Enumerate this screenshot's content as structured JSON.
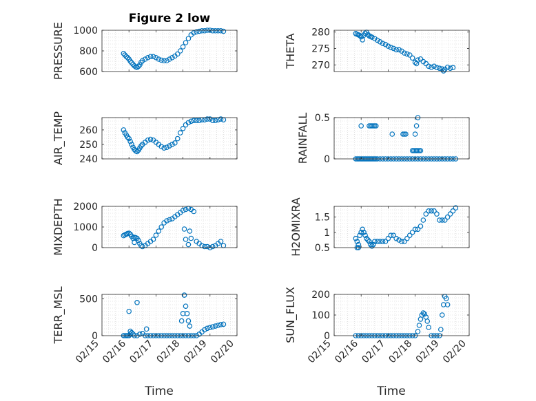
{
  "colors": {
    "marker": "#0072BD",
    "axis": "#262626",
    "grid": "#d0d0d0"
  },
  "x_axis": {
    "label": "Time",
    "range": [
      "02/15",
      "02/20"
    ],
    "ticks": [
      "02/15",
      "02/16",
      "02/17",
      "02/18",
      "02/19",
      "02/20"
    ],
    "tick_rotation_deg": -45
  },
  "chart_data": [
    {
      "type": "scatter",
      "title": "Figure 2 low",
      "ylabel": "PRESSURE",
      "ylim": [
        600,
        1000
      ],
      "yticks": [
        600,
        800,
        1000
      ],
      "grid": "minor-dotted",
      "x": [
        0.8,
        0.85,
        0.9,
        0.95,
        1.0,
        1.05,
        1.1,
        1.15,
        1.2,
        1.25,
        1.3,
        1.35,
        1.4,
        1.45,
        1.5,
        1.6,
        1.7,
        1.8,
        1.9,
        2.0,
        2.1,
        2.2,
        2.3,
        2.4,
        2.5,
        2.6,
        2.7,
        2.8,
        2.9,
        3.0,
        3.1,
        3.2,
        3.3,
        3.4,
        3.5,
        3.6,
        3.7,
        3.8,
        3.9,
        4.0,
        4.1,
        4.2,
        4.3,
        4.4,
        4.5
      ],
      "y": [
        775,
        760,
        745,
        735,
        720,
        700,
        685,
        670,
        655,
        645,
        640,
        650,
        665,
        690,
        705,
        720,
        735,
        745,
        745,
        735,
        720,
        710,
        705,
        705,
        720,
        735,
        750,
        770,
        800,
        840,
        880,
        920,
        955,
        975,
        985,
        990,
        995,
        995,
        1000,
        1000,
        995,
        995,
        995,
        995,
        990
      ]
    },
    {
      "type": "scatter",
      "title": "",
      "ylabel": "THETA",
      "ylim": [
        268,
        280.5
      ],
      "yticks": [
        270,
        275,
        280
      ],
      "grid": "minor-dotted",
      "x": [
        0.8,
        0.85,
        0.9,
        0.95,
        1.0,
        1.05,
        1.1,
        1.15,
        1.2,
        1.25,
        1.3,
        1.35,
        1.4,
        1.5,
        1.6,
        1.7,
        1.8,
        1.9,
        2.0,
        2.1,
        2.2,
        2.3,
        2.4,
        2.5,
        2.6,
        2.7,
        2.8,
        2.9,
        3.0,
        3.05,
        3.1,
        3.2,
        3.3,
        3.4,
        3.5,
        3.6,
        3.7,
        3.8,
        3.9,
        4.0,
        4.05,
        4.1,
        4.2,
        4.3,
        4.4
      ],
      "y": [
        279.5,
        279.3,
        279.1,
        278.9,
        278.5,
        277.6,
        279.0,
        279.6,
        279.9,
        279.2,
        278.8,
        278.6,
        278.4,
        278.0,
        277.5,
        277.0,
        276.5,
        276.2,
        275.7,
        275.3,
        275.0,
        274.6,
        274.6,
        274.2,
        273.6,
        273.3,
        273.0,
        272.1,
        270.8,
        270.4,
        271.5,
        271.8,
        271.0,
        270.4,
        269.6,
        269.3,
        269.6,
        269.2,
        269.0,
        268.8,
        268.2,
        268.7,
        269.3,
        269.0,
        269.2
      ]
    },
    {
      "type": "scatter",
      "title": "",
      "ylabel": "AIR_TEMP",
      "ylim": [
        240,
        268.5
      ],
      "yticks": [
        240,
        250,
        260
      ],
      "grid": "minor-dotted",
      "x": [
        0.8,
        0.85,
        0.9,
        0.95,
        1.0,
        1.05,
        1.1,
        1.15,
        1.2,
        1.25,
        1.3,
        1.35,
        1.4,
        1.45,
        1.5,
        1.6,
        1.7,
        1.8,
        1.9,
        2.0,
        2.1,
        2.2,
        2.3,
        2.4,
        2.5,
        2.6,
        2.7,
        2.8,
        2.9,
        3.0,
        3.1,
        3.2,
        3.3,
        3.4,
        3.5,
        3.6,
        3.7,
        3.8,
        3.9,
        4.0,
        4.1,
        4.2,
        4.3,
        4.4,
        4.5
      ],
      "y": [
        260,
        258,
        256.5,
        255,
        254,
        252,
        250,
        248,
        246.5,
        245.5,
        245,
        246,
        247.5,
        249,
        250,
        251.5,
        253,
        253.5,
        253,
        251.5,
        250,
        248.5,
        247.5,
        248,
        249,
        250,
        251,
        254,
        258,
        261,
        263.5,
        265,
        266,
        266.5,
        266.5,
        266.5,
        267,
        267,
        267.5,
        267.5,
        266.5,
        266.5,
        267,
        267.5,
        267
      ]
    },
    {
      "type": "scatter",
      "title": "",
      "ylabel": "RAINFALL",
      "ylim": [
        0,
        0.5
      ],
      "yticks": [
        0,
        0.5
      ],
      "grid": "minor-dotted",
      "x": [
        0.8,
        0.85,
        0.9,
        0.95,
        1.0,
        1.05,
        1.1,
        1.15,
        1.2,
        1.25,
        1.3,
        1.35,
        1.4,
        1.45,
        1.5,
        1.55,
        1.6,
        1.7,
        1.8,
        1.9,
        2.0,
        2.1,
        2.2,
        2.3,
        2.4,
        2.5,
        2.6,
        2.7,
        2.8,
        2.9,
        3.0,
        3.1,
        3.2,
        3.3,
        3.4,
        3.5,
        3.6,
        3.7,
        3.8,
        3.9,
        4.0,
        4.1,
        4.2,
        4.3,
        4.4,
        4.5,
        1.0,
        1.3,
        1.35,
        1.4,
        1.45,
        1.5,
        1.55,
        2.15,
        2.55,
        2.6,
        2.65,
        2.9,
        2.95,
        3.0,
        3.05,
        3.1,
        3.15,
        3.2,
        3.0,
        3.05,
        3.1
      ],
      "y": [
        0,
        0,
        0,
        0,
        0,
        0,
        0,
        0,
        0,
        0,
        0,
        0,
        0,
        0,
        0,
        0,
        0,
        0,
        0,
        0,
        0,
        0,
        0,
        0,
        0,
        0,
        0,
        0,
        0,
        0,
        0,
        0,
        0,
        0,
        0,
        0,
        0,
        0,
        0,
        0,
        0,
        0,
        0,
        0,
        0,
        0,
        0.4,
        0.4,
        0.4,
        0.4,
        0.4,
        0.4,
        0.4,
        0.3,
        0.3,
        0.3,
        0.3,
        0.1,
        0.1,
        0.1,
        0.1,
        0.1,
        0.1,
        0.1,
        0.3,
        0.4,
        0.5
      ]
    },
    {
      "type": "scatter",
      "title": "",
      "ylabel": "MIXDEPTH",
      "ylim": [
        0,
        2000
      ],
      "yticks": [
        0,
        1000,
        2000
      ],
      "grid": "minor-dotted",
      "x": [
        0.8,
        0.85,
        0.9,
        0.95,
        1.0,
        1.05,
        1.1,
        1.15,
        1.2,
        1.25,
        1.3,
        1.35,
        1.4,
        1.45,
        1.5,
        1.6,
        1.7,
        1.8,
        1.9,
        2.0,
        2.1,
        2.2,
        2.3,
        2.4,
        2.5,
        2.6,
        2.7,
        2.8,
        2.9,
        3.0,
        3.1,
        3.2,
        3.3,
        3.4,
        3.5,
        3.6,
        3.7,
        3.8,
        3.9,
        4.0,
        4.1,
        4.2,
        4.3,
        4.4,
        4.5,
        1.2,
        3.05,
        3.1,
        3.2,
        3.25,
        3.3
      ],
      "y": [
        580,
        620,
        650,
        680,
        700,
        650,
        550,
        450,
        500,
        480,
        450,
        350,
        200,
        100,
        50,
        100,
        200,
        300,
        400,
        600,
        800,
        1000,
        1200,
        1300,
        1350,
        1400,
        1500,
        1600,
        1700,
        1800,
        1850,
        1900,
        1850,
        1750,
        300,
        200,
        100,
        50,
        50,
        0,
        50,
        100,
        200,
        300,
        100,
        250,
        900,
        400,
        150,
        800,
        450
      ]
    },
    {
      "type": "scatter",
      "title": "",
      "ylabel": "H2OMIXRA",
      "ylim": [
        0.5,
        1.85
      ],
      "yticks": [
        0.5,
        1,
        1.5
      ],
      "grid": "minor-dotted",
      "x": [
        0.8,
        0.85,
        0.9,
        0.95,
        1.0,
        1.05,
        1.1,
        1.15,
        1.2,
        1.25,
        1.3,
        1.35,
        1.4,
        1.45,
        1.5,
        1.6,
        1.7,
        1.8,
        1.9,
        2.0,
        2.1,
        2.2,
        2.3,
        2.4,
        2.5,
        2.6,
        2.7,
        2.8,
        2.9,
        3.0,
        3.1,
        3.2,
        3.3,
        3.4,
        3.5,
        3.6,
        3.7,
        3.8,
        3.9,
        4.0,
        4.1,
        4.2,
        4.3,
        4.4,
        4.5,
        0.85,
        0.9
      ],
      "y": [
        0.8,
        0.7,
        0.6,
        0.9,
        1.0,
        1.1,
        1.0,
        0.9,
        0.8,
        0.75,
        0.7,
        0.6,
        0.55,
        0.6,
        0.7,
        0.7,
        0.7,
        0.7,
        0.7,
        0.8,
        0.9,
        0.9,
        0.8,
        0.75,
        0.7,
        0.7,
        0.8,
        0.9,
        1.0,
        1.1,
        1.1,
        1.2,
        1.4,
        1.6,
        1.7,
        1.7,
        1.7,
        1.6,
        1.4,
        1.4,
        1.4,
        1.5,
        1.6,
        1.7,
        1.8,
        0.5,
        0.5
      ]
    },
    {
      "type": "scatter",
      "title": "",
      "ylabel": "TERR_MSL",
      "ylim": [
        0,
        560
      ],
      "yticks": [
        0,
        500
      ],
      "grid": "minor-dotted",
      "x": [
        0.8,
        0.85,
        0.9,
        0.95,
        1.0,
        1.05,
        1.1,
        1.15,
        1.2,
        1.3,
        1.4,
        1.5,
        1.6,
        1.7,
        1.8,
        1.9,
        2.0,
        2.1,
        2.2,
        2.3,
        2.4,
        2.5,
        2.6,
        2.7,
        2.8,
        2.9,
        3.0,
        3.1,
        3.2,
        3.3,
        3.4,
        3.5,
        3.6,
        3.7,
        3.8,
        3.9,
        4.0,
        4.1,
        4.2,
        4.3,
        4.4,
        4.5,
        1.0,
        1.05,
        1.3,
        1.65,
        2.95,
        3.0,
        3.05,
        3.1,
        3.15,
        3.2,
        3.25
      ],
      "y": [
        0,
        0,
        0,
        0,
        0,
        20,
        40,
        20,
        0,
        0,
        20,
        30,
        0,
        0,
        0,
        0,
        0,
        0,
        0,
        0,
        0,
        0,
        0,
        0,
        0,
        0,
        0,
        0,
        0,
        0,
        0,
        0,
        20,
        50,
        80,
        100,
        110,
        120,
        130,
        140,
        150,
        155,
        330,
        60,
        450,
        90,
        200,
        300,
        550,
        400,
        300,
        200,
        130
      ]
    },
    {
      "type": "scatter",
      "title": "",
      "ylabel": "SUN_FLUX",
      "ylim": [
        0,
        200
      ],
      "yticks": [
        0,
        100,
        200
      ],
      "grid": "minor-dotted",
      "x": [
        0.8,
        0.9,
        1.0,
        1.1,
        1.2,
        1.3,
        1.4,
        1.5,
        1.6,
        1.7,
        1.8,
        1.9,
        2.0,
        2.1,
        2.2,
        2.3,
        2.4,
        2.5,
        2.6,
        2.7,
        2.8,
        2.9,
        3.0,
        3.1,
        3.15,
        3.2,
        3.25,
        3.3,
        3.35,
        3.4,
        3.45,
        3.5,
        3.6,
        3.7,
        3.8,
        3.9,
        3.95,
        4.0,
        4.05,
        4.1,
        4.15,
        4.2
      ],
      "y": [
        0,
        0,
        0,
        0,
        0,
        0,
        0,
        0,
        0,
        0,
        0,
        0,
        0,
        0,
        0,
        0,
        0,
        0,
        0,
        0,
        0,
        0,
        0,
        20,
        50,
        80,
        100,
        110,
        105,
        90,
        70,
        40,
        0,
        0,
        0,
        0,
        30,
        100,
        150,
        190,
        180,
        150
      ]
    }
  ]
}
